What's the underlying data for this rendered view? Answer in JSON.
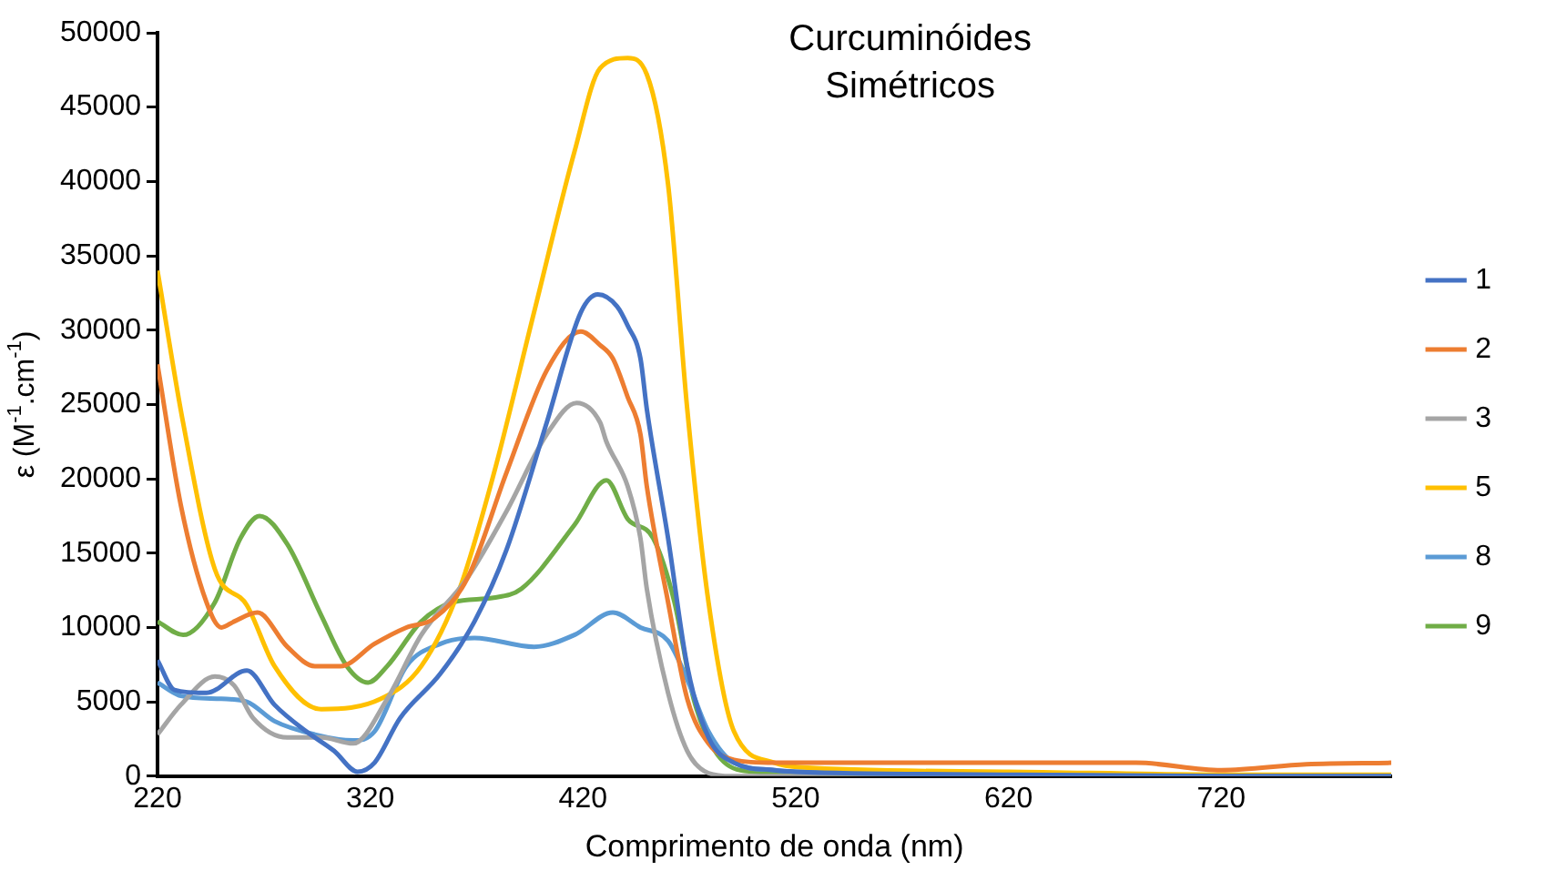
{
  "chart_data": {
    "type": "line",
    "title": "Curcuminóides\nSimétricos",
    "xlabel": "Comprimento de onda (nm)",
    "ylabel": "ε (M$^{-1}$.cm$^{-1}$)",
    "xlim": [
      220,
      800
    ],
    "xticks": [
      220,
      320,
      420,
      520,
      620,
      720
    ],
    "ylim": [
      0,
      50000
    ],
    "yticks": [
      0,
      5000,
      10000,
      15000,
      20000,
      25000,
      30000,
      35000,
      40000,
      45000,
      50000
    ],
    "grid": false,
    "legend": "right",
    "marker": "none",
    "line_style": "solid",
    "series": [
      {
        "name": "1",
        "color": "#4472c4",
        "x": [
          220,
          228,
          243,
          262,
          275,
          290,
          303,
          314,
          322,
          334,
          353,
          369,
          384,
          403,
          419,
          427,
          436,
          441,
          447,
          450,
          460,
          469,
          479,
          491,
          510,
          520,
          620,
          720,
          800
        ],
        "values": [
          7800,
          5800,
          5600,
          7100,
          4800,
          3000,
          1700,
          300,
          900,
          3900,
          6900,
          10400,
          15200,
          23800,
          31200,
          32400,
          31600,
          30300,
          28100,
          24700,
          16000,
          7400,
          2600,
          900,
          400,
          300,
          100,
          0,
          0
        ]
      },
      {
        "name": "2",
        "color": "#ed7d31",
        "x": [
          220,
          231,
          243,
          250,
          256,
          267,
          281,
          294,
          306,
          322,
          337,
          350,
          366,
          384,
          403,
          419,
          428,
          434,
          441,
          447,
          450,
          460,
          469,
          479,
          491,
          510,
          540,
          620,
          680,
          720,
          760,
          800
        ],
        "values": [
          27700,
          18200,
          11700,
          10000,
          10400,
          11000,
          8700,
          7400,
          7400,
          8900,
          10000,
          10600,
          13400,
          20400,
          27300,
          29900,
          29000,
          28100,
          25500,
          23000,
          19500,
          11700,
          5200,
          2200,
          1100,
          900,
          900,
          900,
          900,
          400,
          800,
          900
        ]
      },
      {
        "name": "3",
        "color": "#a5a5a5",
        "x": [
          220,
          231,
          247,
          256,
          265,
          281,
          297,
          312,
          328,
          344,
          366,
          384,
          403,
          417,
          428,
          431,
          441,
          447,
          450,
          460,
          469,
          479,
          490,
          800
        ],
        "values": [
          2800,
          4800,
          6700,
          6100,
          3900,
          2600,
          2600,
          2200,
          5200,
          9500,
          13400,
          17800,
          23000,
          25100,
          23800,
          22500,
          19500,
          16000,
          12600,
          5600,
          1700,
          200,
          0,
          0
        ]
      },
      {
        "name": "5",
        "color": "#ffc000",
        "x": [
          220,
          232,
          247,
          262,
          275,
          297,
          325,
          344,
          362,
          378,
          397,
          416,
          428,
          441,
          450,
          460,
          469,
          479,
          491,
          510,
          522,
          620,
          720,
          800
        ],
        "values": [
          34000,
          23800,
          13900,
          11500,
          7400,
          4500,
          5200,
          7400,
          12600,
          20300,
          31200,
          42000,
          47600,
          48300,
          47200,
          39800,
          24700,
          11700,
          3000,
          900,
          600,
          300,
          100,
          100
        ]
      },
      {
        "name": "8",
        "color": "#5b9bd5",
        "x": [
          220,
          231,
          250,
          262,
          275,
          294,
          312,
          322,
          337,
          353,
          369,
          397,
          416,
          434,
          447,
          460,
          469,
          479,
          491,
          510,
          520,
          620,
          720,
          800
        ],
        "values": [
          6300,
          5400,
          5200,
          5000,
          3700,
          2800,
          2400,
          3000,
          7400,
          8900,
          9300,
          8700,
          9500,
          11000,
          10000,
          9100,
          6500,
          3000,
          900,
          400,
          300,
          200,
          0,
          0
        ]
      },
      {
        "name": "9",
        "color": "#70ad47",
        "x": [
          220,
          232,
          247,
          259,
          268,
          281,
          297,
          309,
          319,
          328,
          344,
          359,
          378,
          391,
          416,
          431,
          441,
          453,
          463,
          472,
          482,
          494,
          520,
          620,
          800
        ],
        "values": [
          10400,
          9500,
          11700,
          16000,
          17500,
          15600,
          10800,
          7400,
          6300,
          7400,
          10400,
          11700,
          12000,
          12600,
          16900,
          19900,
          17300,
          16000,
          11700,
          5200,
          1700,
          400,
          200,
          0,
          0
        ]
      }
    ]
  }
}
